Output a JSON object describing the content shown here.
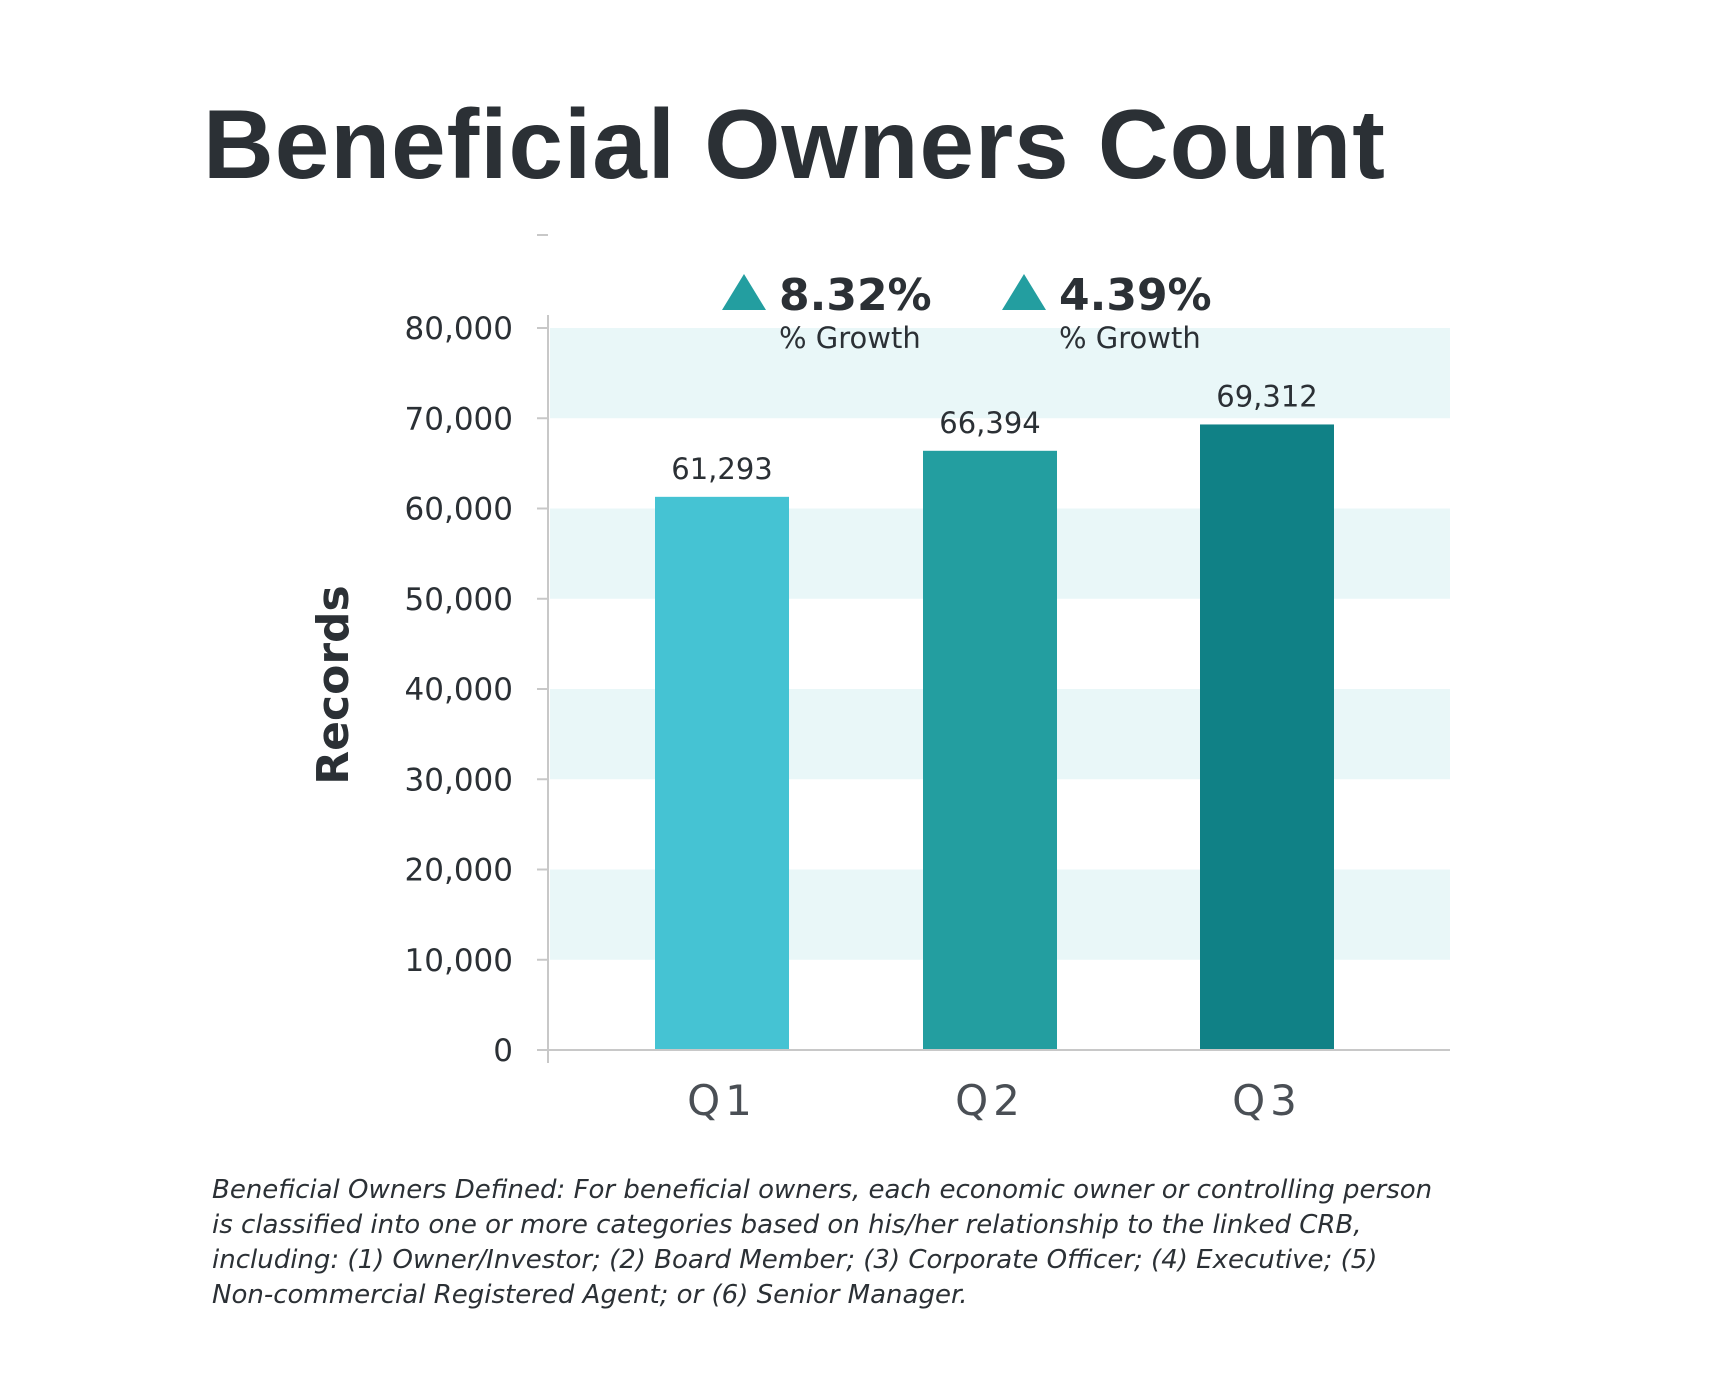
{
  "title": "Beneficial Owners Count",
  "chart_data": {
    "type": "bar",
    "title": "Beneficial Owners Count",
    "xlabel": "",
    "ylabel": "Records",
    "categories": [
      "Q1",
      "Q2",
      "Q3"
    ],
    "values": [
      61293,
      66394,
      69312
    ],
    "value_labels": [
      "61,293",
      "66,394",
      "69,312"
    ],
    "bar_colors": [
      "#45c3d3",
      "#239ea0",
      "#108186"
    ],
    "ylim": [
      0,
      80000
    ],
    "yticks": [
      0,
      10000,
      20000,
      30000,
      40000,
      50000,
      60000,
      70000,
      80000
    ],
    "ytick_labels": [
      "0",
      "10,000",
      "20,000",
      "30,000",
      "40,000",
      "50,000",
      "60,000",
      "70,000",
      "80,000"
    ],
    "band_color": "#e9f7f8",
    "grid": false,
    "annotations": [
      {
        "between": [
          "Q1",
          "Q2"
        ],
        "value": "8.32%",
        "label": "% Growth",
        "icon": "triangle-up-icon",
        "color": "#239ea0"
      },
      {
        "between": [
          "Q2",
          "Q3"
        ],
        "value": "4.39%",
        "label": "% Growth",
        "icon": "triangle-up-icon",
        "color": "#239ea0"
      }
    ]
  },
  "footnote": "Beneficial Owners Defined: For beneficial owners, each economic owner or controlling person is classified into one or more categories based on his/her relationship to the linked CRB, including: (1) Owner/Investor; (2) Board Member; (3) Corporate Officer; (4) Executive; (5) Non-commercial Registered Agent; or (6) Senior Manager."
}
